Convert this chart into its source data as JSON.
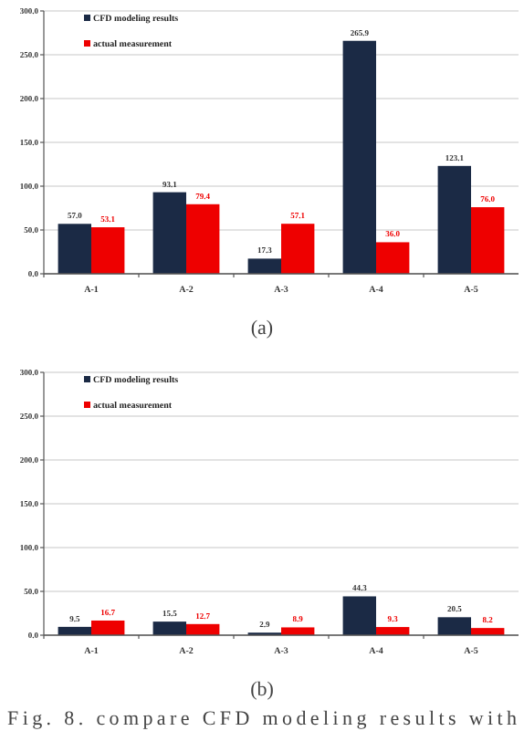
{
  "chart_data": [
    {
      "type": "bar",
      "categories": [
        "A-1",
        "A-2",
        "A-3",
        "A-4",
        "A-5"
      ],
      "series": [
        {
          "name": "CFD modeling results",
          "color": "#1b2a45",
          "values": [
            57.0,
            93.1,
            17.3,
            265.9,
            123.1
          ],
          "value_labels": [
            "57.0",
            "93.1",
            "17.3",
            "265.9",
            "123.1"
          ]
        },
        {
          "name": "actual measurement",
          "color": "#ee0000",
          "values": [
            53.1,
            79.4,
            57.1,
            36.0,
            76.0
          ],
          "value_labels": [
            "53.1",
            "79.4",
            "57.1",
            "36.0",
            "76.0"
          ]
        }
      ],
      "ylim": [
        0,
        300
      ],
      "yticks": [
        {
          "value": 0,
          "label": "0.0"
        },
        {
          "value": 50,
          "label": "50.0"
        },
        {
          "value": 100,
          "label": "100.0"
        },
        {
          "value": 150,
          "label": "150.0"
        },
        {
          "value": 200,
          "label": "200.0"
        },
        {
          "value": 250,
          "label": "250.0"
        },
        {
          "value": 300,
          "label": "300.0"
        }
      ],
      "grid": "y",
      "legend": "top left",
      "annotations": [
        "(a)"
      ]
    },
    {
      "type": "bar",
      "categories": [
        "A-1",
        "A-2",
        "A-3",
        "A-4",
        "A-5"
      ],
      "series": [
        {
          "name": "CFD modeling results",
          "color": "#1b2a45",
          "values": [
            9.5,
            15.5,
            2.9,
            44.3,
            20.5
          ],
          "value_labels": [
            "9.5",
            "15.5",
            "2.9",
            "44.3",
            "20.5"
          ]
        },
        {
          "name": "actual measurement",
          "color": "#ee0000",
          "values": [
            16.7,
            12.7,
            8.9,
            9.3,
            8.2
          ],
          "value_labels": [
            "16.7",
            "12.7",
            "8.9",
            "9.3",
            "8.2"
          ]
        }
      ],
      "ylim": [
        0,
        300
      ],
      "yticks": [
        {
          "value": 0,
          "label": "0.0"
        },
        {
          "value": 50,
          "label": "50.0"
        },
        {
          "value": 100,
          "label": "100.0"
        },
        {
          "value": 150,
          "label": "150.0"
        },
        {
          "value": 200,
          "label": "200.0"
        },
        {
          "value": 250,
          "label": "250.0"
        },
        {
          "value": 300,
          "label": "300.0"
        }
      ],
      "grid": "y",
      "legend": "top left",
      "annotations": [
        "(b)",
        "Fig. 8. compare CFD modeling results with"
      ]
    }
  ]
}
